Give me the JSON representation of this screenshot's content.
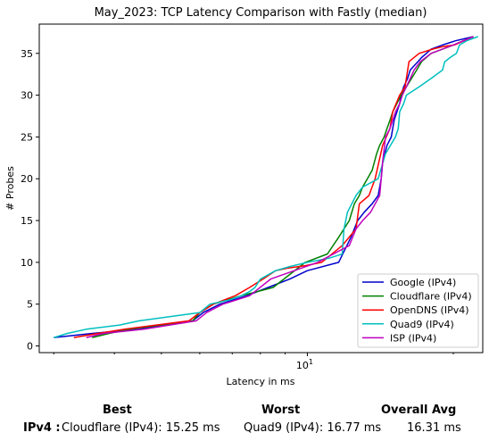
{
  "chart_data": {
    "type": "line",
    "title": "May_2023: TCP Latency Comparison with Fastly (median)",
    "xlabel": "Latency in ms",
    "ylabel": "# Probes",
    "xscale": "log",
    "xlim": [
      2.8,
      23
    ],
    "ylim": [
      -0.8,
      38.5
    ],
    "x_ticks": [
      {
        "value": 10,
        "label": "10"
      }
    ],
    "x_tick_label_base": "10",
    "x_tick_label_exp": "1",
    "y_ticks": [
      0,
      5,
      10,
      15,
      20,
      25,
      30,
      35
    ],
    "grid": false,
    "legend_position": "lower-right",
    "series": [
      {
        "name": "Google (IPv4)",
        "color": "#0000cc",
        "x": [
          3.0,
          3.6,
          4.5,
          5.8,
          6.1,
          6.6,
          7.5,
          8.3,
          9.2,
          10.0,
          11.6,
          12.3,
          12.7,
          13.1,
          13.6,
          14.0,
          14.2,
          14.3,
          14.6,
          14.9,
          15.0,
          15.1,
          15.3,
          15.5,
          15.6,
          15.8,
          16.1,
          16.3,
          16.6,
          16.9,
          17.2,
          17.6,
          18.0,
          19.0,
          20.2,
          22.0
        ],
        "y": [
          1,
          1.5,
          2,
          3,
          4,
          5,
          6,
          7,
          8,
          9,
          10,
          13,
          15,
          16,
          17,
          18,
          20,
          22,
          24,
          25,
          26,
          27,
          28,
          29,
          30,
          31,
          32,
          33,
          33.5,
          34,
          34.5,
          35,
          35.5,
          36,
          36.5,
          37
        ]
      },
      {
        "name": "Cloudflare (IPv4)",
        "color": "#008000",
        "x": [
          3.6,
          3.9,
          4.3,
          5.8,
          6.0,
          6.4,
          7.3,
          8.5,
          9.9,
          11.0,
          11.6,
          12.2,
          12.5,
          12.8,
          13.0,
          13.3,
          13.6,
          13.9,
          14.1,
          14.4,
          14.6,
          14.8,
          15.0,
          15.3,
          15.6,
          16.0,
          16.4,
          16.8,
          17.2,
          18.0,
          19.0,
          20.0,
          22.0
        ],
        "y": [
          1,
          1.5,
          2,
          3,
          4,
          5,
          6,
          7,
          10,
          11,
          13,
          15,
          17,
          18,
          19,
          20,
          21,
          23,
          24,
          25,
          26,
          27,
          28,
          29,
          30,
          31,
          32,
          33,
          34,
          35,
          35.5,
          36,
          37
        ]
      },
      {
        "name": "OpenDNS (IPv4)",
        "color": "#ff0000",
        "x": [
          3.3,
          3.7,
          4.2,
          5.7,
          6.0,
          6.4,
          7.1,
          7.6,
          8.1,
          8.6,
          9.1,
          9.9,
          10.7,
          11.8,
          12.6,
          12.8,
          13.4,
          13.8,
          14.3,
          14.8,
          15.0,
          15.5,
          15.9,
          16.0,
          16.2,
          17.0,
          18.1,
          19.0,
          20.1,
          22.0
        ],
        "y": [
          1,
          1.5,
          2,
          3,
          4,
          5,
          6,
          7,
          8,
          9,
          9.3,
          9.6,
          10,
          12,
          14,
          17,
          18,
          20,
          24,
          26,
          28,
          30,
          31,
          32,
          34,
          35,
          35.5,
          35.8,
          36,
          37
        ]
      },
      {
        "name": "Quad9 (IPv4)",
        "color": "#00bfbf",
        "x": [
          3.0,
          3.2,
          3.5,
          4.1,
          4.5,
          6.0,
          6.3,
          6.9,
          7.3,
          7.6,
          7.8,
          8.0,
          8.6,
          9.2,
          10.0,
          11.1,
          11.8,
          11.9,
          12.1,
          12.6,
          13.0,
          14.0,
          14.5,
          15.2,
          15.4,
          15.5,
          15.8,
          16.0,
          17.0,
          18.0,
          19.0,
          19.2,
          19.7,
          20.3,
          20.6,
          21.3,
          22.5
        ],
        "y": [
          1,
          1.5,
          2,
          2.5,
          3,
          4,
          5,
          5.5,
          6,
          6.5,
          7,
          8,
          9,
          9.5,
          10,
          10.5,
          11,
          14,
          16,
          18,
          19,
          20,
          23,
          25,
          26,
          28,
          29,
          30,
          31,
          32,
          33,
          34,
          34.5,
          35,
          36,
          36.5,
          37
        ]
      },
      {
        "name": "ISP (IPv4)",
        "color": "#bf00bf",
        "x": [
          3.5,
          3.8,
          4.6,
          5.9,
          6.2,
          6.7,
          7.6,
          8.4,
          9.4,
          10.5,
          12.2,
          12.6,
          13.0,
          13.5,
          13.8,
          14.1,
          14.2,
          14.3,
          14.5,
          14.8,
          15.0,
          15.2,
          15.5,
          15.7,
          16.0,
          16.3,
          16.6,
          17.1,
          18.0,
          20.0,
          22.0
        ],
        "y": [
          1,
          1.5,
          2,
          3,
          4,
          5,
          6,
          8,
          9,
          10,
          12,
          14,
          15,
          16,
          17,
          18,
          20,
          22,
          25,
          26,
          27,
          28,
          29,
          30,
          31,
          32,
          33,
          34,
          35,
          36,
          37
        ]
      }
    ]
  },
  "summary": {
    "best_header": "Best",
    "worst_header": "Worst",
    "avg_header": "Overall Avg",
    "row_label": "IPv4 :",
    "best_value": "Cloudflare (IPv4): 15.25 ms",
    "worst_value": "Quad9 (IPv4): 16.77 ms",
    "avg_value": "16.31 ms"
  }
}
